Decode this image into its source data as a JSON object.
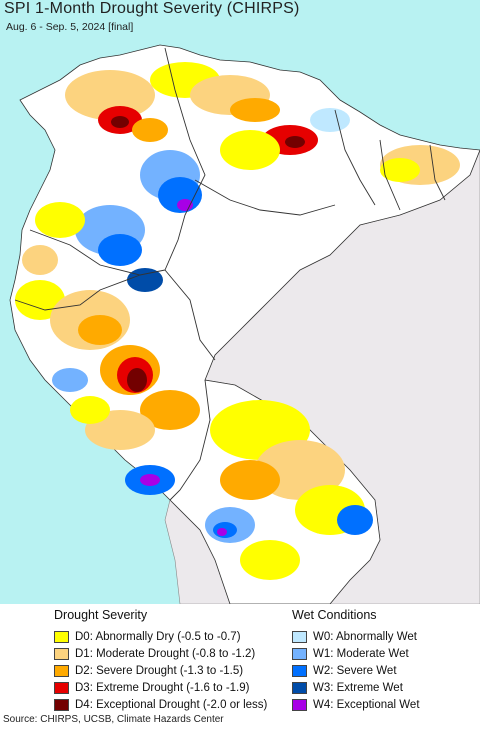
{
  "header": {
    "title": "SPI 1-Month Drought Severity (CHIRPS)",
    "subtitle": "Aug. 6 - Sep. 5, 2024 [final]"
  },
  "colors": {
    "ocean": "#b8f2f2",
    "land_base": "#ffffff",
    "outside_land": "#ece9ec",
    "border": "#333333",
    "d0": "#ffff00",
    "d1": "#fcd37f",
    "d2": "#ffaa00",
    "d3": "#e60000",
    "d4": "#730000",
    "w0": "#bfe8ff",
    "w1": "#73b2ff",
    "w2": "#0070ff",
    "w3": "#004ca8",
    "w4": "#a800e6"
  },
  "legend": {
    "drought": {
      "heading": "Drought Severity",
      "items": [
        {
          "code": "d0",
          "label": "D0: Abnormally Dry (-0.5 to -0.7)"
        },
        {
          "code": "d1",
          "label": "D1: Moderate Drought (-0.8 to -1.2)"
        },
        {
          "code": "d2",
          "label": "D2: Severe Drought (-1.3 to -1.5)"
        },
        {
          "code": "d3",
          "label": "D3: Extreme Drought (-1.6 to -1.9)"
        },
        {
          "code": "d4",
          "label": "D4: Exceptional Drought (-2.0 or less)"
        }
      ]
    },
    "wet": {
      "heading": "Wet Conditions",
      "items": [
        {
          "code": "w0",
          "label": "W0: Abnormally Wet"
        },
        {
          "code": "w1",
          "label": "W1: Moderate Wet"
        },
        {
          "code": "w2",
          "label": "W2: Severe Wet"
        },
        {
          "code": "w3",
          "label": "W3: Extreme Wet"
        },
        {
          "code": "w4",
          "label": "W4: Exceptional Wet"
        }
      ]
    }
  },
  "footer": {
    "source": "Source: CHIRPS, UCSB, Climate Hazards Center"
  }
}
